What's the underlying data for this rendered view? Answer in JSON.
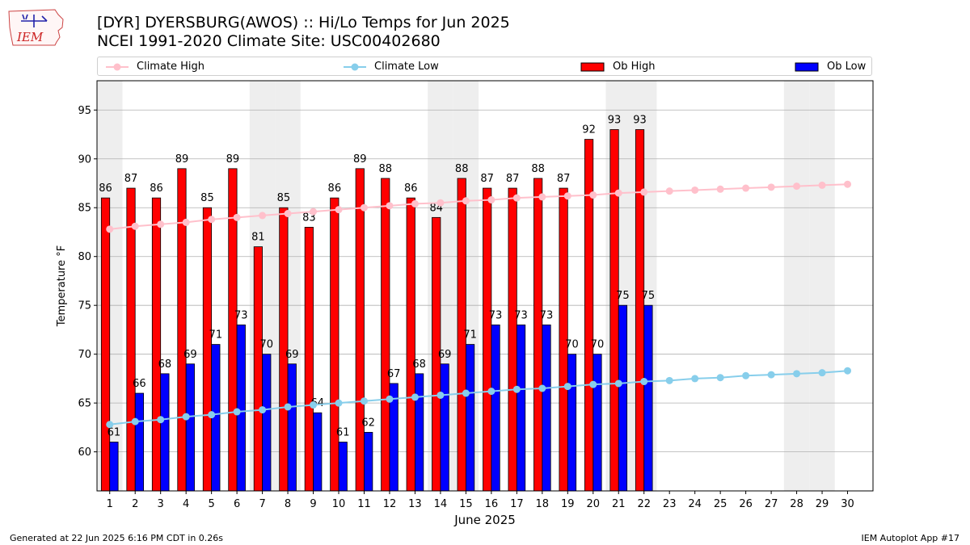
{
  "header": {
    "title_line1": "[DYR] DYERSBURG(AWOS) :: Hi/Lo Temps for Jun 2025",
    "title_line2": "NCEI 1991-2020 Climate Site: USC00402680",
    "logo_text": "IEM"
  },
  "footer": {
    "left": "Generated at 22 Jun 2025 6:16 PM CDT in 0.26s",
    "right": "IEM Autoplot App #17"
  },
  "legend": {
    "climate_high": "Climate High",
    "climate_low": "Climate Low",
    "ob_high": "Ob High",
    "ob_low": "Ob Low"
  },
  "colors": {
    "ob_high": "#ff0000",
    "ob_low": "#0000ff",
    "climate_high": "#ffc0cb",
    "climate_low": "#87ceeb",
    "weekend_shade": "#eeeeee",
    "grid": "#b0b0b0"
  },
  "chart_data": {
    "type": "bar",
    "title": "[DYR] DYERSBURG(AWOS) :: Hi/Lo Temps for Jun 2025",
    "subtitle": "NCEI 1991-2020 Climate Site: USC00402680",
    "xlabel": "June 2025",
    "ylabel": "Temperature °F",
    "ylim": [
      56,
      98
    ],
    "yticks": [
      60,
      65,
      70,
      75,
      80,
      85,
      90,
      95
    ],
    "grid": "horizontal",
    "legend_position": "top",
    "days": [
      1,
      2,
      3,
      4,
      5,
      6,
      7,
      8,
      9,
      10,
      11,
      12,
      13,
      14,
      15,
      16,
      17,
      18,
      19,
      20,
      21,
      22,
      23,
      24,
      25,
      26,
      27,
      28,
      29,
      30
    ],
    "weekend_days": [
      1,
      7,
      8,
      14,
      15,
      21,
      22,
      28,
      29
    ],
    "series": [
      {
        "name": "Ob High",
        "kind": "bar",
        "values": [
          86,
          87,
          86,
          89,
          85,
          89,
          81,
          85,
          83,
          86,
          89,
          88,
          86,
          84,
          88,
          87,
          87,
          88,
          87,
          92,
          93,
          93
        ]
      },
      {
        "name": "Ob Low",
        "kind": "bar",
        "values": [
          61,
          66,
          68,
          69,
          71,
          73,
          70,
          69,
          64,
          61,
          62,
          67,
          68,
          69,
          71,
          73,
          73,
          73,
          70,
          70,
          75,
          75
        ]
      },
      {
        "name": "Climate High",
        "kind": "line",
        "values": [
          82.8,
          83.1,
          83.3,
          83.5,
          83.8,
          84.0,
          84.2,
          84.4,
          84.6,
          84.8,
          85.0,
          85.2,
          85.4,
          85.5,
          85.7,
          85.8,
          86.0,
          86.1,
          86.2,
          86.3,
          86.5,
          86.6,
          86.7,
          86.8,
          86.9,
          87.0,
          87.1,
          87.2,
          87.3,
          87.4
        ]
      },
      {
        "name": "Climate Low",
        "kind": "line",
        "values": [
          62.8,
          63.1,
          63.3,
          63.6,
          63.8,
          64.1,
          64.3,
          64.6,
          64.8,
          65.0,
          65.2,
          65.4,
          65.6,
          65.8,
          66.0,
          66.2,
          66.4,
          66.5,
          66.7,
          66.9,
          67.0,
          67.2,
          67.3,
          67.5,
          67.6,
          67.8,
          67.9,
          68.0,
          68.1,
          68.3
        ]
      }
    ]
  }
}
